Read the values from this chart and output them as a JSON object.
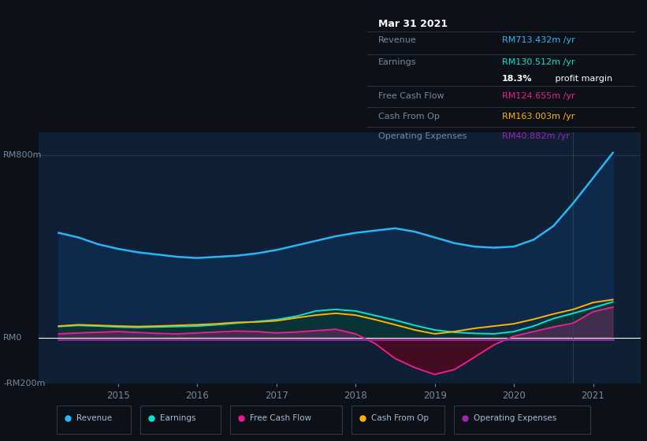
{
  "background_color": "#0d1117",
  "plot_bg_color": "#0f1f35",
  "title_box": {
    "date": "Mar 31 2021",
    "revenue_label": "Revenue",
    "revenue_value": "RM713.432m",
    "earnings_label": "Earnings",
    "earnings_value": "RM130.512m",
    "profit_margin": "18.3%",
    "profit_margin_text": " profit margin",
    "fcf_label": "Free Cash Flow",
    "fcf_value": "RM124.655m",
    "cashop_label": "Cash From Op",
    "cashop_value": "RM163.003m",
    "opex_label": "Operating Expenses",
    "opex_value": "RM40.882m"
  },
  "colors": {
    "revenue": "#29b6f6",
    "earnings": "#00e5cc",
    "free_cash_flow": "#e91e8c",
    "cash_from_op": "#ffb300",
    "operating_expenses": "#9c27b0",
    "revenue_fill": "#0d2a4a",
    "earnings_fill": "#0a3535",
    "fcf_fill_neg": "#4a0a20",
    "text_dim": "#778899",
    "text_white": "#ffffff",
    "box_bg": "#080c14",
    "box_border": "#2a3a4a",
    "hline": "#ffffff",
    "zero_line": "#ffffff"
  },
  "ylim": [
    -200,
    900
  ],
  "ytick_positions": [
    -200,
    0,
    800
  ],
  "ytick_labels": [
    "-RM200m",
    "RM0",
    "RM800m"
  ],
  "xlim": [
    2014.0,
    2021.6
  ],
  "xticks": [
    2015,
    2016,
    2017,
    2018,
    2019,
    2020,
    2021
  ],
  "legend": [
    {
      "label": "Revenue",
      "color": "#29b6f6"
    },
    {
      "label": "Earnings",
      "color": "#00e5cc"
    },
    {
      "label": "Free Cash Flow",
      "color": "#e91e8c"
    },
    {
      "label": "Cash From Op",
      "color": "#ffb300"
    },
    {
      "label": "Operating Expenses",
      "color": "#9c27b0"
    }
  ],
  "series": {
    "x": [
      2014.25,
      2014.5,
      2014.75,
      2015.0,
      2015.25,
      2015.5,
      2015.75,
      2016.0,
      2016.25,
      2016.5,
      2016.75,
      2017.0,
      2017.25,
      2017.5,
      2017.75,
      2018.0,
      2018.25,
      2018.5,
      2018.75,
      2019.0,
      2019.25,
      2019.5,
      2019.75,
      2020.0,
      2020.25,
      2020.5,
      2020.75,
      2021.0,
      2021.25
    ],
    "revenue": [
      460,
      440,
      410,
      390,
      375,
      365,
      355,
      350,
      355,
      360,
      370,
      385,
      405,
      425,
      445,
      460,
      470,
      480,
      465,
      440,
      415,
      400,
      395,
      400,
      430,
      490,
      590,
      700,
      810
    ],
    "earnings": [
      50,
      55,
      52,
      48,
      46,
      48,
      50,
      52,
      58,
      65,
      72,
      80,
      95,
      118,
      125,
      118,
      98,
      78,
      55,
      35,
      25,
      20,
      18,
      28,
      52,
      85,
      108,
      132,
      158
    ],
    "free_cash_flow": [
      18,
      22,
      25,
      28,
      24,
      20,
      18,
      22,
      26,
      30,
      28,
      22,
      26,
      32,
      38,
      18,
      -25,
      -90,
      -130,
      -160,
      -138,
      -85,
      -30,
      8,
      28,
      48,
      65,
      115,
      135
    ],
    "cash_from_op": [
      52,
      58,
      55,
      52,
      50,
      52,
      55,
      58,
      62,
      68,
      70,
      75,
      88,
      100,
      108,
      100,
      80,
      58,
      35,
      18,
      28,
      42,
      52,
      62,
      82,
      105,
      125,
      155,
      168
    ],
    "operating_expenses": [
      -5,
      -5,
      -5,
      -5,
      -5,
      -5,
      -5,
      -5,
      -5,
      -5,
      -5,
      -5,
      -5,
      -5,
      -5,
      -5,
      -5,
      -5,
      -5,
      -5,
      -5,
      -5,
      -5,
      -5,
      -5,
      -5,
      -5,
      -5,
      -5
    ]
  },
  "vline_x": 2020.75,
  "figsize": [
    8.21,
    5.6
  ],
  "dpi": 100
}
